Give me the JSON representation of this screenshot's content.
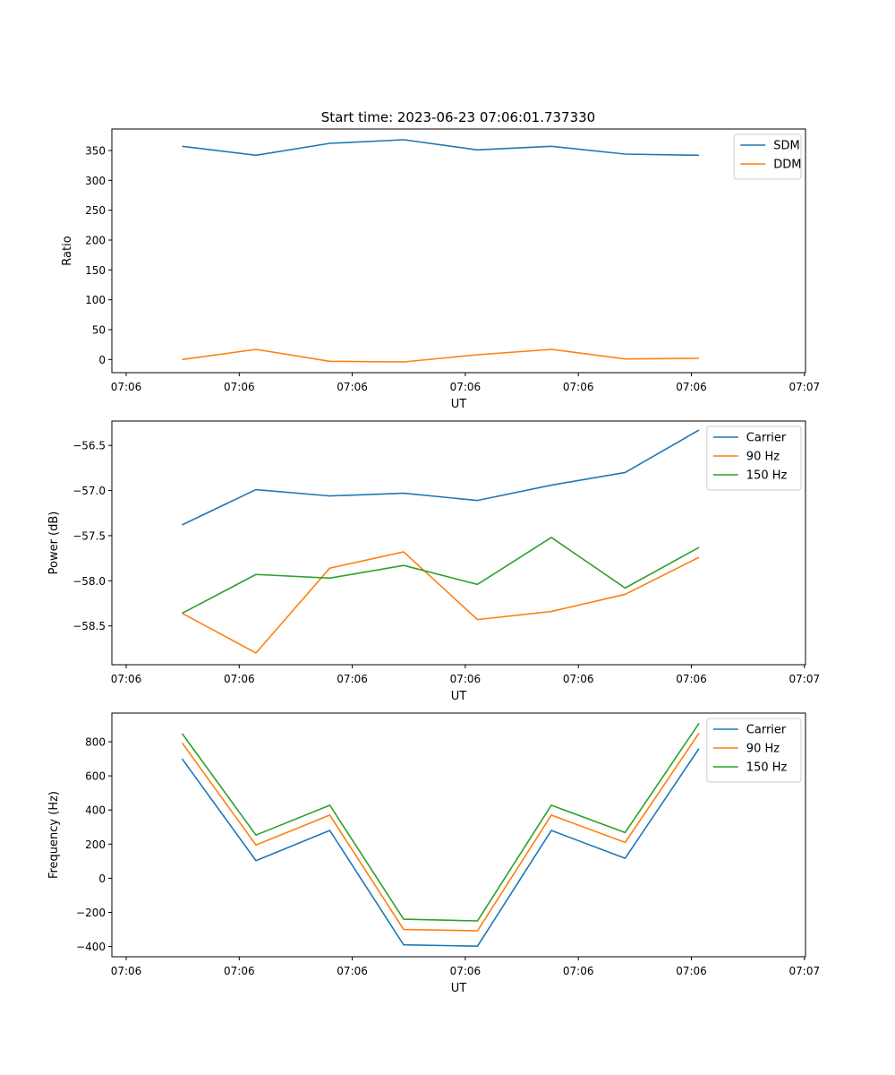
{
  "figure_title": "Start time: 2023-06-23 07:06:01.737330",
  "chart_data": [
    {
      "type": "line",
      "xlabel": "UT",
      "ylabel": "Ratio",
      "x_ticks": [
        "07:06",
        "07:06",
        "07:06",
        "07:06",
        "07:06",
        "07:06",
        "07:06"
      ],
      "x_last_tick": "07:07",
      "ylim": [
        -22,
        386
      ],
      "y_ticks": [
        0,
        50,
        100,
        150,
        200,
        250,
        300,
        350
      ],
      "y_tick_labels": [
        "0",
        "50",
        "100",
        "150",
        "200",
        "250",
        "300",
        "350"
      ],
      "legend_position": "top-right",
      "grid": false,
      "series": [
        {
          "name": "SDM",
          "color": "#1f77b4",
          "values": [
            357,
            342,
            362,
            368,
            351,
            357,
            344,
            342
          ]
        },
        {
          "name": "DDM",
          "color": "#ff7f0e",
          "values": [
            0,
            17,
            -3,
            -4,
            8,
            17,
            1,
            2
          ]
        }
      ]
    },
    {
      "type": "line",
      "xlabel": "UT",
      "ylabel": "Power (dB)",
      "x_ticks": [
        "07:06",
        "07:06",
        "07:06",
        "07:06",
        "07:06",
        "07:06",
        "07:06"
      ],
      "x_last_tick": "07:07",
      "ylim": [
        -58.93,
        -56.23
      ],
      "y_ticks": [
        -58.5,
        -58.0,
        -57.5,
        -57.0,
        -56.5
      ],
      "y_tick_labels": [
        "−58.5",
        "−58.0",
        "−57.5",
        "−57.0",
        "−56.5"
      ],
      "legend_position": "top-right",
      "grid": false,
      "series": [
        {
          "name": "Carrier",
          "color": "#1f77b4",
          "values": [
            -57.38,
            -56.99,
            -57.06,
            -57.03,
            -57.11,
            -56.94,
            -56.8,
            -56.33
          ]
        },
        {
          "name": "90 Hz",
          "color": "#ff7f0e",
          "values": [
            -58.36,
            -58.8,
            -57.86,
            -57.68,
            -58.43,
            -58.34,
            -58.15,
            -57.74
          ]
        },
        {
          "name": "150 Hz",
          "color": "#2ca02c",
          "values": [
            -58.36,
            -57.93,
            -57.97,
            -57.83,
            -58.04,
            -57.52,
            -58.08,
            -57.63
          ]
        }
      ]
    },
    {
      "type": "line",
      "xlabel": "UT",
      "ylabel": "Frequency (Hz)",
      "x_ticks": [
        "07:06",
        "07:06",
        "07:06",
        "07:06",
        "07:06",
        "07:06",
        "07:06"
      ],
      "x_last_tick": "07:07",
      "ylim": [
        -460,
        968
      ],
      "y_ticks": [
        -400,
        -200,
        0,
        200,
        400,
        600,
        800
      ],
      "y_tick_labels": [
        "−400",
        "−200",
        "0",
        "200",
        "400",
        "600",
        "800"
      ],
      "legend_position": "top-right",
      "grid": false,
      "series": [
        {
          "name": "Carrier",
          "color": "#1f77b4",
          "values": [
            700,
            103,
            280,
            -390,
            -398,
            280,
            117,
            760
          ]
        },
        {
          "name": "90 Hz",
          "color": "#ff7f0e",
          "values": [
            793,
            195,
            370,
            -300,
            -308,
            370,
            210,
            850
          ]
        },
        {
          "name": "150 Hz",
          "color": "#2ca02c",
          "values": [
            848,
            253,
            428,
            -240,
            -250,
            428,
            268,
            908
          ]
        }
      ]
    }
  ]
}
